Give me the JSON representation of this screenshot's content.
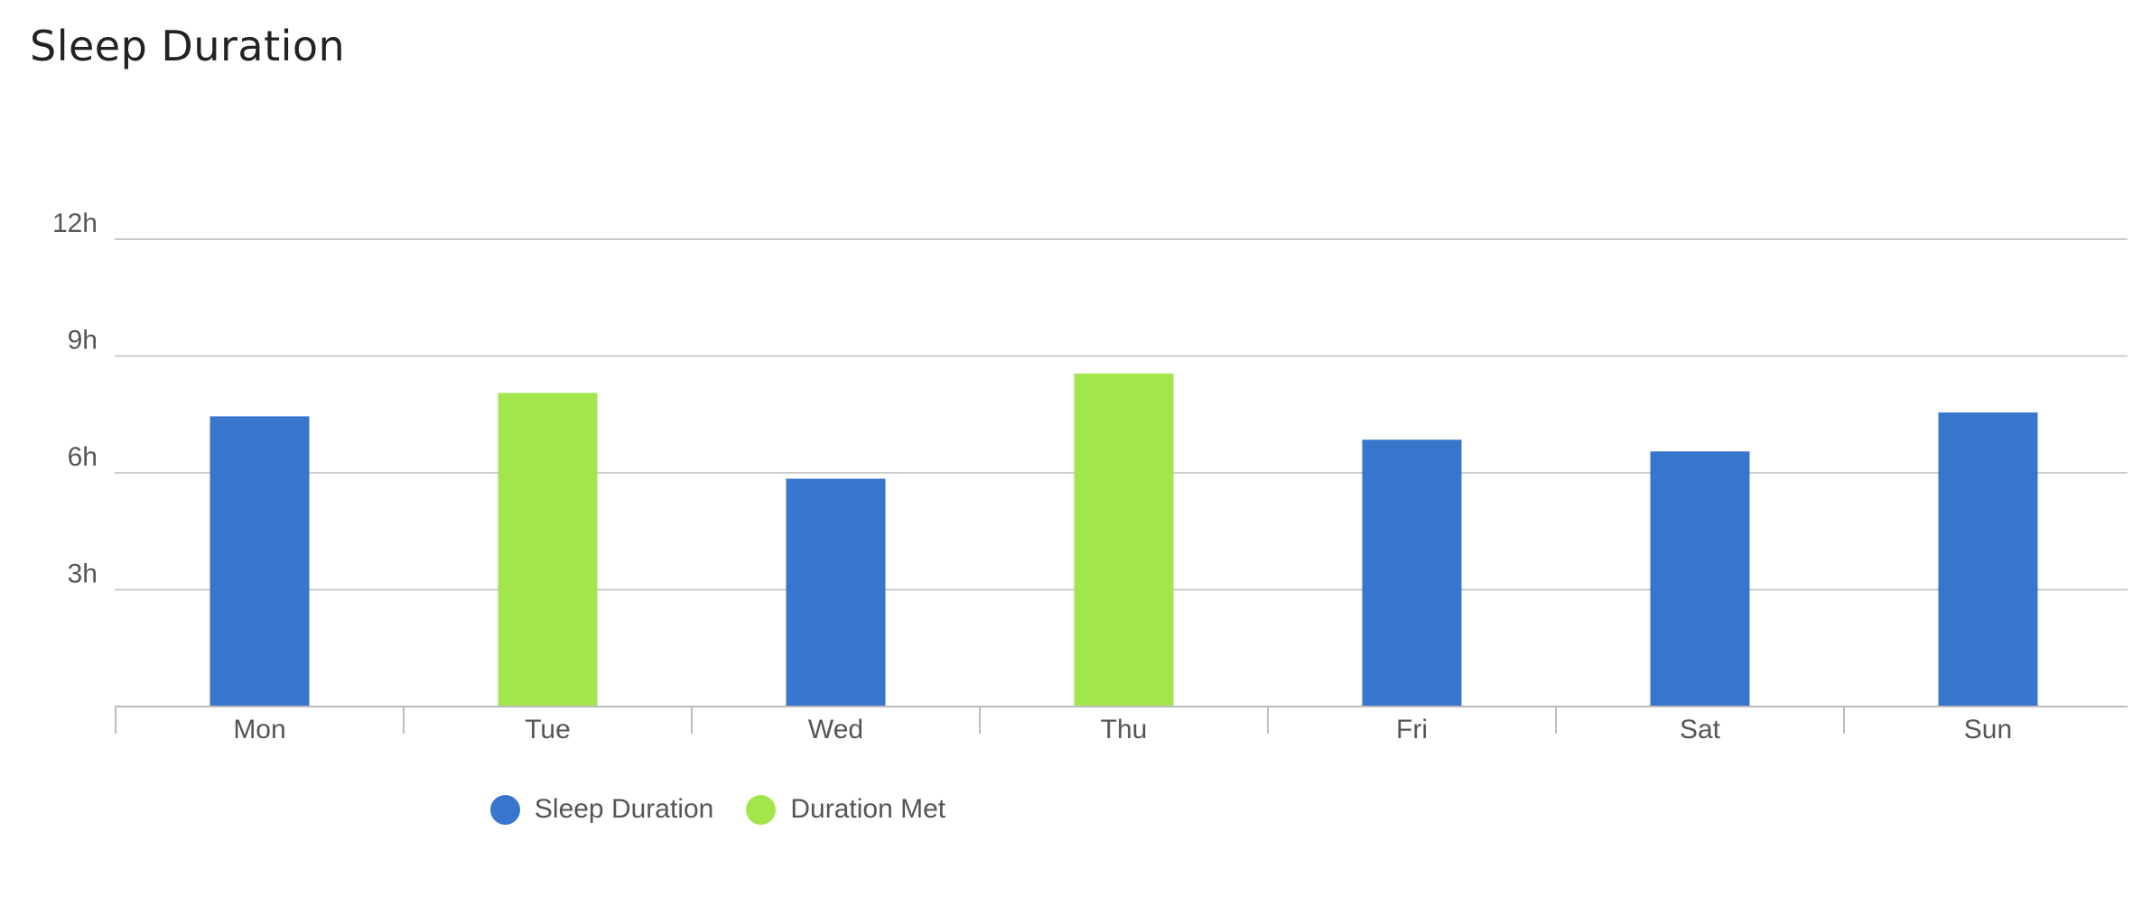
{
  "chart_data": {
    "type": "bar",
    "title": "Sleep Duration",
    "categories": [
      "Mon",
      "Tue",
      "Wed",
      "Thu",
      "Fri",
      "Sat",
      "Sun"
    ],
    "values": [
      7.45,
      8.05,
      5.85,
      8.55,
      6.85,
      6.55,
      7.55
    ],
    "met": [
      false,
      true,
      false,
      true,
      false,
      false,
      false
    ],
    "ylim": [
      0,
      12
    ],
    "yticks": [
      {
        "value": 3,
        "label": "3h"
      },
      {
        "value": 6,
        "label": "6h"
      },
      {
        "value": 9,
        "label": "9h"
      },
      {
        "value": 12,
        "label": "12h"
      }
    ],
    "grid": true,
    "legend_position": "bottom",
    "legend": [
      {
        "label": "Sleep Duration",
        "color": "#3875cd"
      },
      {
        "label": "Duration Met",
        "color": "#a3e64b"
      }
    ],
    "colors": {
      "default": "#3875cd",
      "met": "#a3e64b",
      "grid": "#cccccc",
      "axis": "#bbbbbb"
    }
  }
}
